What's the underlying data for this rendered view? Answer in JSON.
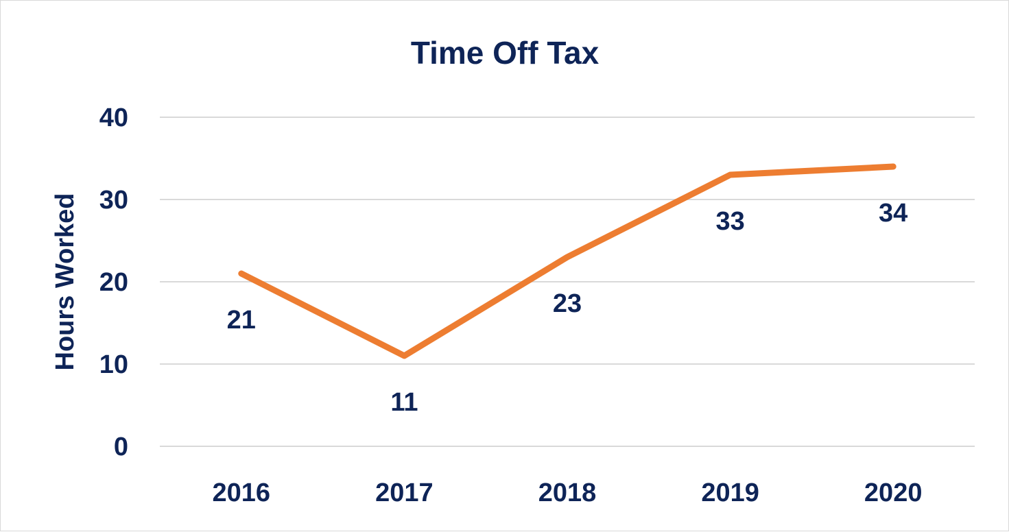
{
  "colors": {
    "text": "#0e2457",
    "line": "#ed7d31",
    "grid": "#d9d9d9",
    "frame": "#d9d9d9"
  },
  "chart_data": {
    "type": "line",
    "title": "Time Off Tax",
    "xlabel": "",
    "ylabel": "Hours Worked",
    "categories": [
      "2016",
      "2017",
      "2018",
      "2019",
      "2020"
    ],
    "series": [
      {
        "values": [
          21,
          11,
          23,
          33,
          34
        ],
        "labels": [
          "21",
          "11",
          "23",
          "33",
          "34"
        ]
      }
    ],
    "ylim": [
      0,
      40
    ],
    "yticks": [
      0,
      10,
      20,
      30,
      40
    ],
    "ytick_labels": [
      "0",
      "10",
      "20",
      "30",
      "40"
    ],
    "grid": true,
    "legend": "none",
    "data_labels": "below"
  }
}
